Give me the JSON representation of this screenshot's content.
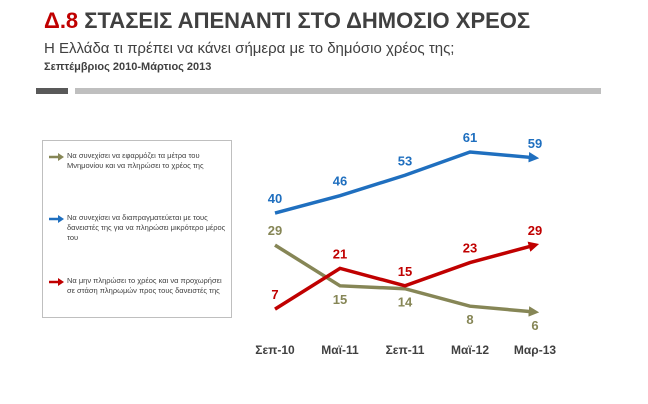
{
  "chart_data": {
    "type": "line",
    "section": "Δ.8",
    "title": "ΣΤΑΣΕΙΣ ΑΠΕΝΑΝΤΙ ΣΤΟ ΔΗΜΟΣΙΟ ΧΡΕΟΣ",
    "subtitle": "Η Ελλάδα τι πρέπει να κάνει σήμερα με το δημόσιο χρέος της;",
    "period": "Σεπτέμβριος 2010-Μάρτιος 2013",
    "categories": [
      "Σεπ-10",
      "Μαϊ-11",
      "Σεπ-11",
      "Μαϊ-12",
      "Μαρ-13"
    ],
    "series": [
      {
        "name": "Να συνεχίσει να εφαρμόζει τα μέτρα του Μνημονίου και να πληρώσει το χρέος της",
        "color": "#868656",
        "values": [
          29,
          15,
          14,
          8,
          6
        ]
      },
      {
        "name": "Να συνεχίσει να διαπραγματεύεται με τους δανειστές της για να πληρώσει μικρότερο μέρος του",
        "color": "#1f6fbf",
        "values": [
          40,
          46,
          53,
          61,
          59
        ]
      },
      {
        "name": "Να μην πληρώσει το χρέος και να προχωρήσει σε στάση πληρωμών προς τους δανειστές της",
        "color": "#c00000",
        "values": [
          7,
          21,
          15,
          23,
          29
        ]
      }
    ]
  }
}
